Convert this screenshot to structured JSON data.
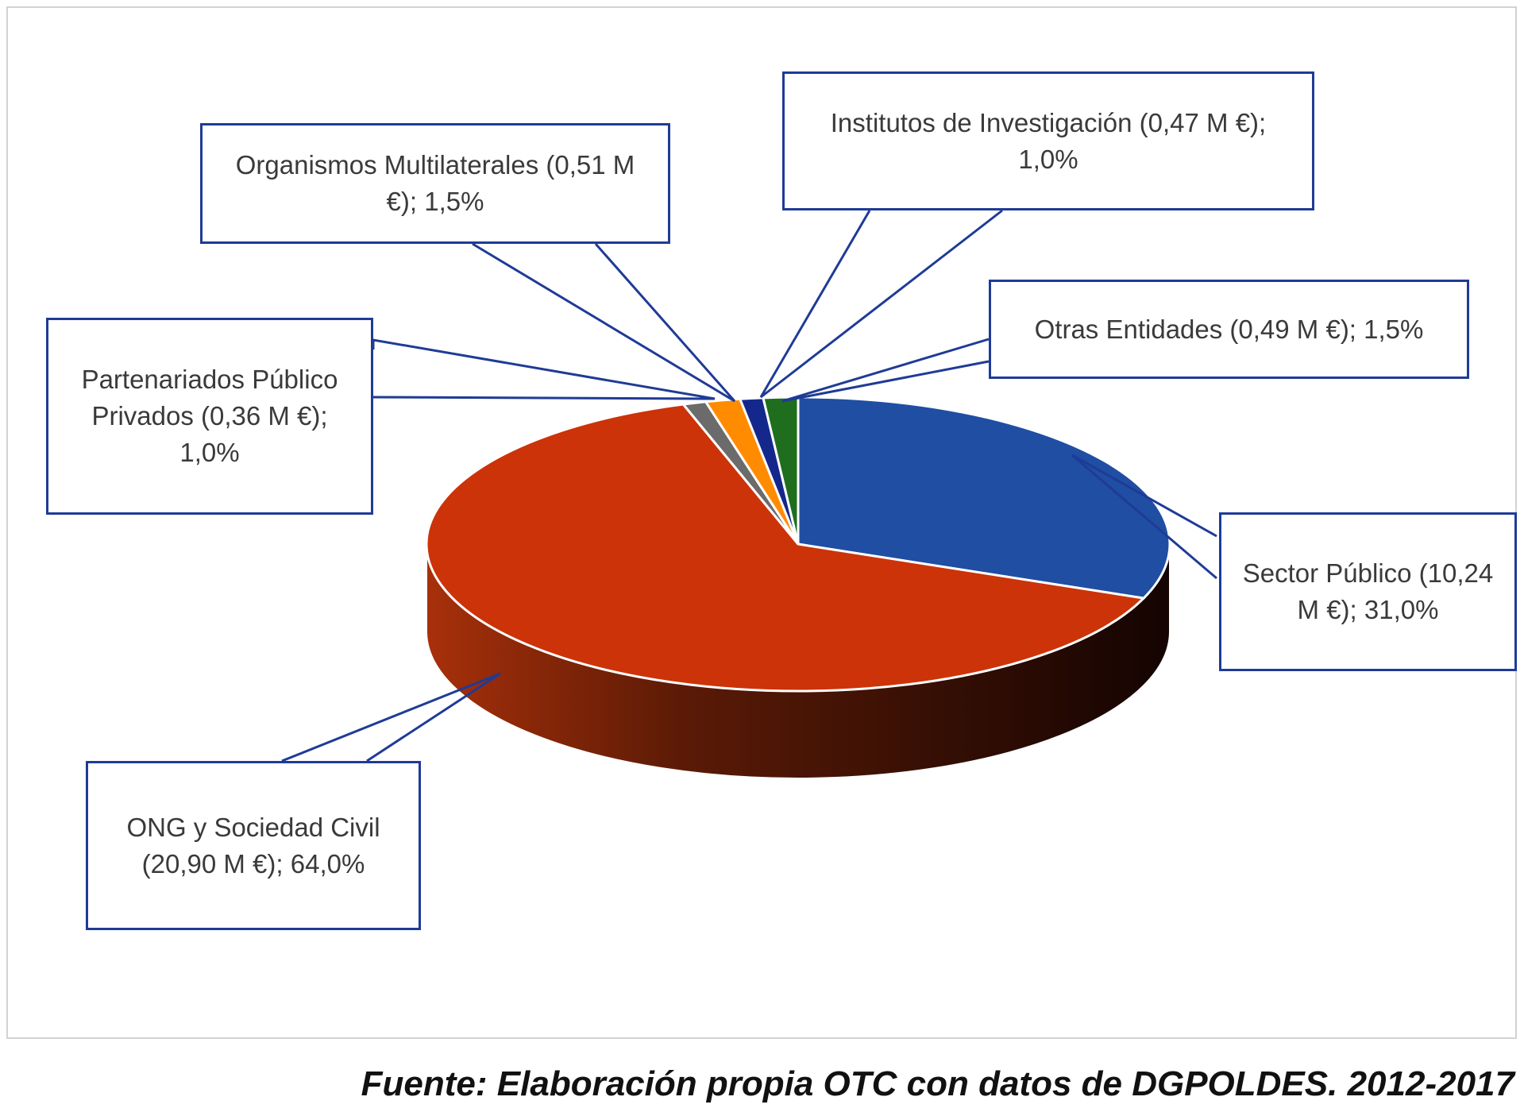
{
  "chart_data": {
    "type": "pie",
    "style": "3d",
    "slices": [
      {
        "label": "Sector Público (10,24 M €); 31,0%",
        "name": "Sector Público",
        "amount_meur": 10.24,
        "percent": 31.0,
        "color": "#1f4ea3"
      },
      {
        "label": "ONG y Sociedad Civil (20,90 M €); 64,0%",
        "name": "ONG y Sociedad Civil",
        "amount_meur": 20.9,
        "percent": 64.0,
        "color": "#cc3309"
      },
      {
        "label": "Partenariados Público Privados (0,36 M €); 1,0%",
        "name": "Partenariados Público Privados",
        "amount_meur": 0.36,
        "percent": 1.0,
        "color": "#6b6b6b"
      },
      {
        "label": "Organismos Multilaterales (0,51 M €); 1,5%",
        "name": "Organismos Multilaterales",
        "amount_meur": 0.51,
        "percent": 1.5,
        "color": "#ff8c00"
      },
      {
        "label": "Institutos de Investigación (0,47 M €); 1,0%",
        "name": "Institutos de Investigación",
        "amount_meur": 0.47,
        "percent": 1.0,
        "color": "#14288c"
      },
      {
        "label": "Otras Entidades (0,49 M €); 1,5%",
        "name": "Otras Entidades",
        "amount_meur": 0.49,
        "percent": 1.5,
        "color": "#1e6e1e"
      }
    ],
    "label_text": {
      "sector_publico": [
        "Sector Público (10,24",
        "M €); 31,0%"
      ],
      "ong": [
        "ONG y Sociedad Civil",
        "(20,90 M €); 64,0%"
      ],
      "partenariados": [
        "Partenariados Público",
        "Privados (0,36 M €);",
        "1,0%"
      ],
      "multilaterales": [
        "Organismos Multilaterales (0,51 M",
        "€); 1,5%"
      ],
      "institutos": [
        "Institutos de Investigación (0,47 M €);",
        "1,0%"
      ],
      "otras": [
        "Otras Entidades (0,49 M €); 1,5%"
      ]
    }
  },
  "caption": "Fuente: Elaboración propia OTC con datos de DGPOLDES. 2012-2017",
  "colors": {
    "callout_border": "#1f3b96",
    "frame_border": "#d2d2d2"
  }
}
